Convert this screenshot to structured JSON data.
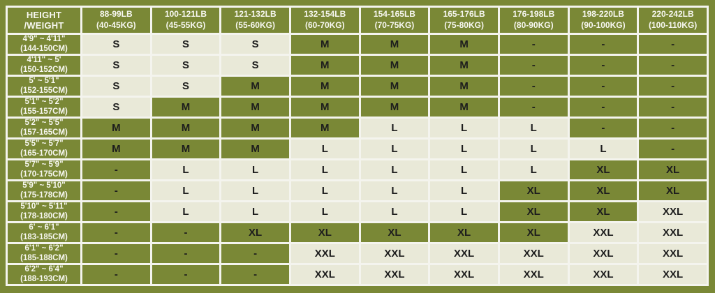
{
  "colors": {
    "page_bg": "#7a8836",
    "cell_green": "#7a8836",
    "cell_cream": "#e9e9d8",
    "grid_line": "#f4f4ee",
    "header_text": "#f7f7f0",
    "cell_text": "#1d1d1d"
  },
  "chart_data": {
    "type": "table",
    "title": "Height / Weight size chart",
    "corner_label": "HEIGHT /WEIGHT",
    "columns": [
      {
        "lb": "88-99LB",
        "kg": "(40-45KG)"
      },
      {
        "lb": "100-121LB",
        "kg": "(45-55KG)"
      },
      {
        "lb": "121-132LB",
        "kg": "(55-60KG)"
      },
      {
        "lb": "132-154LB",
        "kg": "(60-70KG)"
      },
      {
        "lb": "154-165LB",
        "kg": "(70-75KG)"
      },
      {
        "lb": "165-176LB",
        "kg": "(75-80KG)"
      },
      {
        "lb": "176-198LB",
        "kg": "(80-90KG)"
      },
      {
        "lb": "198-220LB",
        "kg": "(90-100KG)"
      },
      {
        "lb": "220-242LB",
        "kg": "(100-110KG)"
      }
    ],
    "rows": [
      {
        "height_ft": "4'9\" ~ 4'11\"",
        "height_cm": "(144-150CM)",
        "sizes": [
          "S",
          "S",
          "S",
          "M",
          "M",
          "M",
          "-",
          "-",
          "-"
        ]
      },
      {
        "height_ft": "4'11\" ~ 5'",
        "height_cm": "(150-152CM)",
        "sizes": [
          "S",
          "S",
          "S",
          "M",
          "M",
          "M",
          "-",
          "-",
          "-"
        ]
      },
      {
        "height_ft": "5' ~ 5'1\"",
        "height_cm": "(152-155CM)",
        "sizes": [
          "S",
          "S",
          "M",
          "M",
          "M",
          "M",
          "-",
          "-",
          "-"
        ]
      },
      {
        "height_ft": "5'1\" ~ 5'2\"",
        "height_cm": "(155-157CM)",
        "sizes": [
          "S",
          "M",
          "M",
          "M",
          "M",
          "M",
          "-",
          "-",
          "-"
        ]
      },
      {
        "height_ft": "5'2\" ~ 5'5\"",
        "height_cm": "(157-165CM)",
        "sizes": [
          "M",
          "M",
          "M",
          "M",
          "L",
          "L",
          "L",
          "-",
          "-"
        ]
      },
      {
        "height_ft": "5'5\" ~ 5'7\"",
        "height_cm": "(165-170CM)",
        "sizes": [
          "M",
          "M",
          "M",
          "L",
          "L",
          "L",
          "L",
          "L",
          "-"
        ]
      },
      {
        "height_ft": "5'7\" ~ 5'9\"",
        "height_cm": "(170-175CM)",
        "sizes": [
          "-",
          "L",
          "L",
          "L",
          "L",
          "L",
          "L",
          "XL",
          "XL"
        ]
      },
      {
        "height_ft": "5'9\" ~ 5'10\"",
        "height_cm": "(175-178CM)",
        "sizes": [
          "-",
          "L",
          "L",
          "L",
          "L",
          "L",
          "XL",
          "XL",
          "XL"
        ]
      },
      {
        "height_ft": "5'10\" ~ 5'11\"",
        "height_cm": "(178-180CM)",
        "sizes": [
          "-",
          "L",
          "L",
          "L",
          "L",
          "L",
          "XL",
          "XL",
          "XXL"
        ]
      },
      {
        "height_ft": "6' ~ 6'1\"",
        "height_cm": "(183-185CM)",
        "sizes": [
          "-",
          "-",
          "XL",
          "XL",
          "XL",
          "XL",
          "XL",
          "XXL",
          "XXL"
        ]
      },
      {
        "height_ft": "6'1\" ~ 6'2\"",
        "height_cm": "(185-188CM)",
        "sizes": [
          "-",
          "-",
          "-",
          "XXL",
          "XXL",
          "XXL",
          "XXL",
          "XXL",
          "XXL"
        ]
      },
      {
        "height_ft": "6'2\" ~ 6'4\"",
        "height_cm": "(188-193CM)",
        "sizes": [
          "-",
          "-",
          "-",
          "XXL",
          "XXL",
          "XXL",
          "XXL",
          "XXL",
          "XXL"
        ]
      }
    ],
    "size_bg": {
      "S": "cream",
      "M": "green",
      "L": "cream",
      "XL": "green",
      "XXL": "cream",
      "-": "green"
    }
  }
}
